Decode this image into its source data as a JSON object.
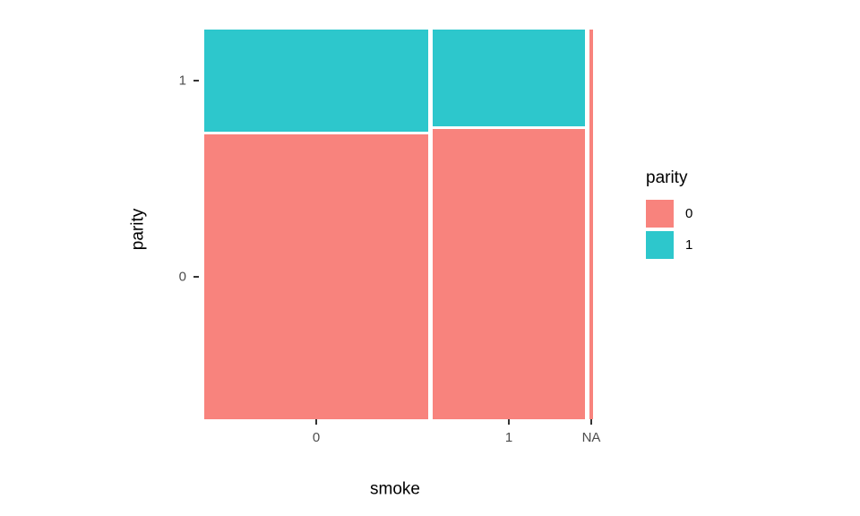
{
  "chart_data": {
    "type": "mosaic",
    "title": "",
    "xlabel": "smoke",
    "ylabel": "parity",
    "x_categories": [
      "0",
      "1",
      "NA"
    ],
    "fill_variable": "parity",
    "fill_categories": [
      "0",
      "1"
    ],
    "y_tick_labels": [
      "1",
      "0"
    ],
    "legend_title": "parity",
    "legend_position": "right",
    "colors": {
      "0": "#F8837D",
      "1": "#2DC7CC"
    },
    "columns": [
      {
        "category": "0",
        "width_fraction": 0.59,
        "segments": {
          "0": 0.735,
          "1": 0.265
        }
      },
      {
        "category": "1",
        "width_fraction": 0.4,
        "segments": {
          "0": 0.75,
          "1": 0.25
        }
      },
      {
        "category": "NA",
        "width_fraction": 0.01,
        "segments": {
          "0": 1.0,
          "1": 0.0
        }
      }
    ]
  }
}
